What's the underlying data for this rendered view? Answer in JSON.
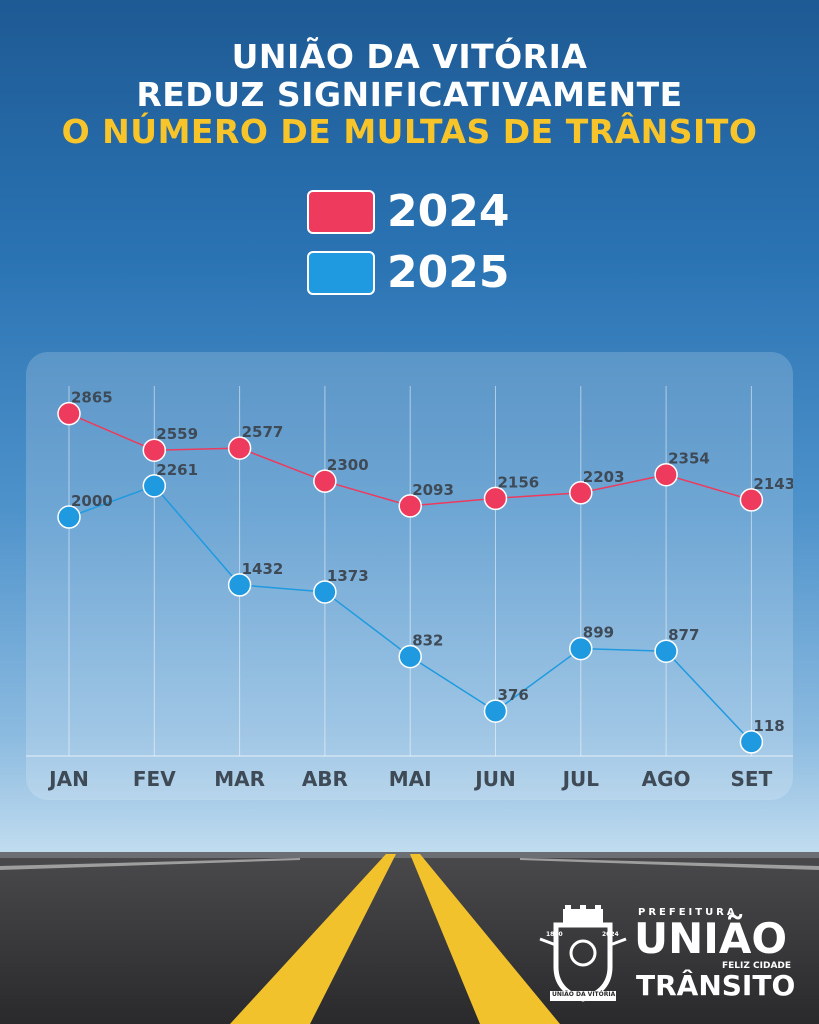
{
  "header": {
    "line1": "UNIÃO DA VITÓRIA",
    "line2": "REDUZ SIGNIFICATIVAMENTE",
    "line3": "O NÚMERO DE MULTAS DE TRÂNSITO"
  },
  "legend": [
    {
      "label": "2024",
      "color": "#ee3a5c"
    },
    {
      "label": "2025",
      "color": "#1f9ae0"
    }
  ],
  "chart_data": {
    "type": "line",
    "categories": [
      "JAN",
      "FEV",
      "MAR",
      "ABR",
      "MAI",
      "JUN",
      "JUL",
      "AGO",
      "SET"
    ],
    "series": [
      {
        "name": "2024",
        "color": "#ee3a5c",
        "values": [
          2865,
          2559,
          2577,
          2300,
          2093,
          2156,
          2203,
          2354,
          2143
        ]
      },
      {
        "name": "2025",
        "color": "#1f9ae0",
        "values": [
          2000,
          2261,
          1432,
          1373,
          832,
          376,
          899,
          877,
          118
        ]
      }
    ],
    "ylim": [
      0,
      3130
    ],
    "grid": "vertical",
    "legend_position": "top"
  },
  "footer": {
    "brand_top": "PREFEITURA",
    "brand_main": "UNIÃO",
    "brand_tagline": "FELIZ CIDADE",
    "brand_sub": "TRÂNSITO",
    "crest_text": "UNIÃO DA VITÓRIA",
    "crest_year_left": "1890",
    "crest_year_right": "2024"
  }
}
